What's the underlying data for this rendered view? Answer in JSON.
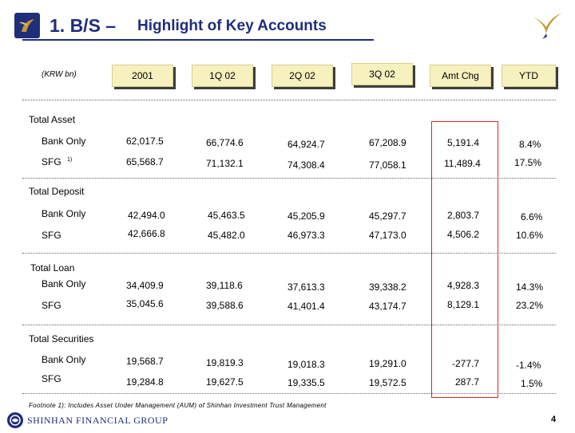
{
  "title": {
    "number": "1. B/S –",
    "subtitle": "Highlight of Key Accounts"
  },
  "unit_label": "(KRW bn)",
  "columns": [
    "2001",
    "1Q 02",
    "2Q 02",
    "3Q 02",
    "Amt Chg",
    "YTD"
  ],
  "sections": [
    {
      "label": "Total Asset",
      "rows": [
        {
          "label": "Bank Only",
          "sup": "",
          "values": [
            "62,017.5",
            "66,774.6",
            "64,924.7",
            "67,208.9",
            "5,191.4",
            "8.4%"
          ]
        },
        {
          "label": "SFG",
          "sup": "1)",
          "values": [
            "65,568.7",
            "71,132.1",
            "74,308.4",
            "77,058.1",
            "11,489.4",
            "17.5%"
          ]
        }
      ]
    },
    {
      "label": "Total Deposit",
      "rows": [
        {
          "label": "Bank Only",
          "sup": "",
          "values": [
            "42,494.0",
            "45,463.5",
            "45,205.9",
            "45,297.7",
            "2,803.7",
            "6.6%"
          ]
        },
        {
          "label": "SFG",
          "sup": "",
          "values": [
            "42,666.8",
            "45,482.0",
            "46,973.3",
            "47,173.0",
            "4,506.2",
            "10.6%"
          ]
        }
      ]
    },
    {
      "label": "Total Loan",
      "rows": [
        {
          "label": "Bank Only",
          "sup": "",
          "values": [
            "34,409.9",
            "39,118.6",
            "37,613.3",
            "39,338.2",
            "4,928.3",
            "14.3%"
          ]
        },
        {
          "label": "SFG",
          "sup": "",
          "values": [
            "35,045.6",
            "39,588.6",
            "41,401.4",
            "43,174.7",
            "8,129.1",
            "23.2%"
          ]
        }
      ]
    },
    {
      "label": "Total Securities",
      "rows": [
        {
          "label": "Bank Only",
          "sup": "",
          "values": [
            "19,568.7",
            "19,819.3",
            "19,018.3",
            "19,291.0",
            "-277.7",
            "-1.4%"
          ]
        },
        {
          "label": "SFG",
          "sup": "",
          "values": [
            "19,284.8",
            "19,627.5",
            "19,335.5",
            "19,572.5",
            "287.7",
            "1.5%"
          ]
        }
      ]
    }
  ],
  "footnote": "Footnote 1): Includes Asset Under Management (AUM) of  Shinhan Investment Trust Management",
  "brand": "SHINHAN FINANCIAL GROUP",
  "page_number": "4",
  "colors": {
    "title": "#1f2e7a",
    "header_fill": "#f7f1bf",
    "highlight_box": "#e0231d",
    "logo_gold": "#c8952f"
  }
}
